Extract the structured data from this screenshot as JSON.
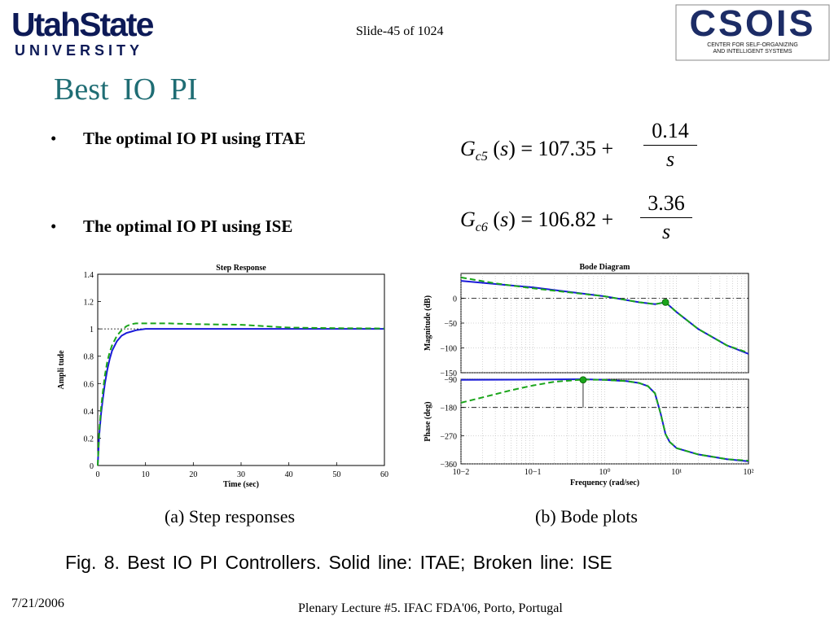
{
  "header": {
    "logo_left_top": "UtahState",
    "logo_left_bottom": "UNIVERSITY",
    "slide_number": "Slide-45 of 1024",
    "logo_right_word": "CSOIS",
    "logo_right_sub1": "CENTER FOR SELF-ORGANIZING",
    "logo_right_sub2": "AND INTELLIGENT SYSTEMS"
  },
  "title": "Best IO PI",
  "bullets": [
    {
      "dot": "•",
      "text": "The optimal IO PI using ITAE"
    },
    {
      "dot": "•",
      "text": "The optimal IO PI using ISE"
    }
  ],
  "equations": [
    {
      "G": "G",
      "sub": "c5",
      "s": "s",
      "constant": "107.35",
      "numerator": "0.14",
      "denominator": "s"
    },
    {
      "G": "G",
      "sub": "c6",
      "s": "s",
      "constant": "106.82",
      "numerator": "3.36",
      "denominator": "s"
    }
  ],
  "colors": {
    "itae": "#1a1ad8",
    "ise": "#1aa51a",
    "title": "#1f6d74"
  },
  "chart_data": [
    {
      "type": "line",
      "title": "Step Response",
      "xlabel": "Time (sec)",
      "ylabel": "Ampli tude",
      "xlim": [
        0,
        60
      ],
      "ylim": [
        0,
        1.4
      ],
      "xticks": [
        0,
        10,
        20,
        30,
        40,
        50,
        60
      ],
      "yticks": [
        0,
        0.2,
        0.4,
        0.6,
        0.8,
        1,
        1.2,
        1.4
      ],
      "reference": 1,
      "series": [
        {
          "style": "solid",
          "color": "#1a1ad8",
          "x": [
            0,
            0.3,
            0.7,
            1,
            1.5,
            2,
            2.5,
            3,
            4,
            5,
            6,
            7,
            8,
            10,
            15,
            20,
            30,
            40,
            50,
            60
          ],
          "y": [
            0,
            0.22,
            0.38,
            0.47,
            0.6,
            0.7,
            0.78,
            0.84,
            0.91,
            0.95,
            0.97,
            0.98,
            0.99,
            1.0,
            1.0,
            1.0,
            1.0,
            1.0,
            1.0,
            1.0
          ]
        },
        {
          "style": "dashed",
          "color": "#1aa51a",
          "x": [
            0,
            0.3,
            0.7,
            1,
            1.5,
            2,
            2.5,
            3,
            4,
            5,
            6,
            7,
            8,
            10,
            15,
            20,
            30,
            35,
            40,
            50,
            60
          ],
          "y": [
            0,
            0.25,
            0.42,
            0.52,
            0.66,
            0.76,
            0.83,
            0.88,
            0.95,
            0.99,
            1.02,
            1.035,
            1.04,
            1.04,
            1.04,
            1.035,
            1.03,
            1.02,
            1.01,
            1.005,
            1.003
          ]
        }
      ],
      "subcaption": "(a) Step responses"
    },
    {
      "type": "line",
      "title": "Bode Diagram",
      "xlabel": "Frequency (rad/sec)",
      "ylabel": "Magnitude (dB)",
      "xscale": "log",
      "xlim": [
        0.01,
        100
      ],
      "ylim": [
        -150,
        50
      ],
      "yticks": [
        -150,
        -100,
        -50,
        0
      ],
      "ytick_labels": [
        "−150",
        "−100",
        "−50",
        "0"
      ],
      "xtick_labels": [
        "10−2",
        "10−1",
        "10⁰",
        "10¹",
        "10²"
      ],
      "reference": 0,
      "marker": {
        "x": 7,
        "y": -8
      },
      "series": [
        {
          "style": "solid",
          "color": "#1a1ad8",
          "x": [
            0.01,
            0.1,
            1,
            3,
            5,
            7,
            10,
            20,
            50,
            100
          ],
          "y": [
            35,
            22,
            4,
            -8,
            -12,
            -8,
            -28,
            -62,
            -95,
            -112
          ]
        },
        {
          "style": "dashed",
          "color": "#1aa51a",
          "x": [
            0.01,
            0.03,
            0.1,
            1,
            3,
            5,
            7,
            10,
            20,
            50,
            100
          ],
          "y": [
            42,
            30,
            20,
            4,
            -8,
            -12,
            -8,
            -28,
            -62,
            -95,
            -110
          ]
        }
      ]
    },
    {
      "type": "line",
      "title": "",
      "xlabel": "Frequency (rad/sec)",
      "ylabel": "Phase (deg)",
      "xscale": "log",
      "xlim": [
        0.01,
        100
      ],
      "ylim": [
        -360,
        -90
      ],
      "yticks": [
        -360,
        -270,
        -180,
        -90
      ],
      "ytick_labels": [
        "−360",
        "−270",
        "−180",
        "−90"
      ],
      "xtick_labels": [
        "10−2",
        "10−1",
        "10⁰",
        "10¹",
        "10²"
      ],
      "reference": -180,
      "marker": {
        "x": 0.5,
        "y": -92
      },
      "series": [
        {
          "style": "solid",
          "color": "#1a1ad8",
          "x": [
            0.01,
            0.1,
            0.5,
            1,
            2,
            3,
            4,
            5,
            6,
            7,
            8,
            10,
            20,
            50,
            100
          ],
          "y": [
            -92,
            -91,
            -90,
            -92,
            -96,
            -102,
            -112,
            -135,
            -200,
            -265,
            -290,
            -310,
            -330,
            -345,
            -352
          ]
        },
        {
          "style": "dashed",
          "color": "#1aa51a",
          "x": [
            0.01,
            0.02,
            0.05,
            0.1,
            0.2,
            0.5,
            1,
            2,
            3,
            4,
            5,
            6,
            7,
            8,
            10,
            20,
            50,
            100
          ],
          "y": [
            -165,
            -148,
            -125,
            -110,
            -98,
            -91,
            -92,
            -96,
            -102,
            -112,
            -135,
            -200,
            -265,
            -290,
            -310,
            -330,
            -345,
            -350
          ]
        }
      ],
      "subcaption": "(b) Bode plots"
    }
  ],
  "caption": "Fig. 8.   Best IO PI Controllers. Solid line: ITAE; Broken line: ISE",
  "footer": {
    "date": "7/21/2006",
    "text": "Plenary Lecture #5. IFAC FDA'06, Porto, Portugal"
  }
}
